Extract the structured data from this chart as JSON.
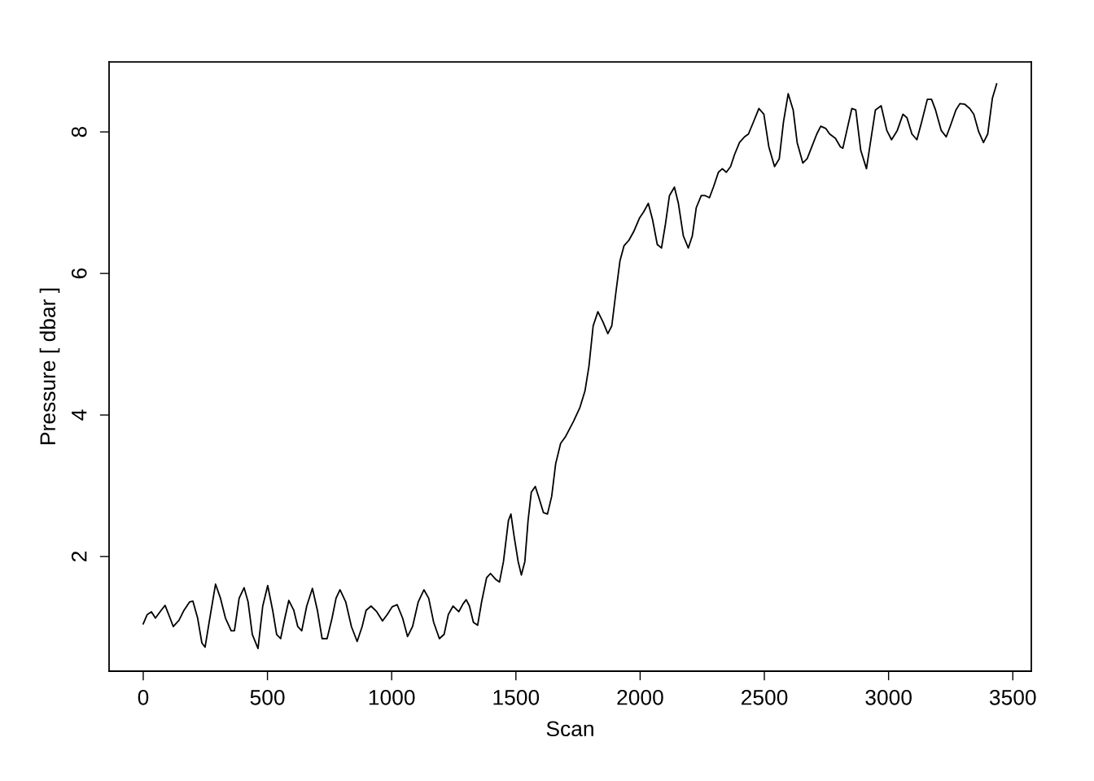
{
  "chart_data": {
    "type": "line",
    "xlabel": "Scan",
    "ylabel": "Pressure [ dbar ]",
    "xlim": [
      -137.5,
      3574.5
    ],
    "ylim": [
      0.38,
      8.99
    ],
    "xticks": [
      0,
      500,
      1000,
      1500,
      2000,
      2500,
      3000,
      3500
    ],
    "yticks": [
      2,
      4,
      6,
      8
    ],
    "grid": false,
    "legend": false,
    "line_style": "solid",
    "marker": "none",
    "series": [
      {
        "color": "#000000",
        "x": [
          0,
          16,
          33,
          49,
          72,
          88,
          108,
          121,
          144,
          164,
          187,
          200,
          219,
          236,
          249,
          268,
          291,
          311,
          331,
          354,
          367,
          386,
          406,
          422,
          439,
          462,
          481,
          501,
          521,
          537,
          553,
          570,
          586,
          606,
          622,
          638,
          658,
          681,
          701,
          720,
          740,
          760,
          776,
          792,
          815,
          838,
          861,
          881,
          897,
          917,
          940,
          963,
          982,
          1002,
          1022,
          1044,
          1064,
          1084,
          1107,
          1130,
          1149,
          1169,
          1192,
          1211,
          1228,
          1247,
          1270,
          1287,
          1300,
          1313,
          1329,
          1346,
          1362,
          1382,
          1398,
          1418,
          1434,
          1450,
          1470,
          1480,
          1493,
          1509,
          1522,
          1536,
          1549,
          1562,
          1578,
          1591,
          1611,
          1627,
          1644,
          1660,
          1680,
          1699,
          1732,
          1758,
          1778,
          1794,
          1811,
          1830,
          1850,
          1870,
          1886,
          1902,
          1919,
          1935,
          1955,
          1974,
          1997,
          2014,
          2033,
          2050,
          2069,
          2086,
          2102,
          2118,
          2138,
          2154,
          2174,
          2194,
          2210,
          2226,
          2246,
          2262,
          2279,
          2295,
          2315,
          2331,
          2347,
          2364,
          2380,
          2400,
          2420,
          2436,
          2456,
          2478,
          2498,
          2518,
          2541,
          2560,
          2577,
          2596,
          2616,
          2632,
          2655,
          2672,
          2691,
          2711,
          2727,
          2747,
          2763,
          2786,
          2806,
          2816,
          2832,
          2852,
          2868,
          2888,
          2911,
          2927,
          2947,
          2970,
          2993,
          3012,
          3035,
          3058,
          3074,
          3094,
          3114,
          3133,
          3156,
          3173,
          3189,
          3212,
          3232,
          3248,
          3271,
          3287,
          3307,
          3327,
          3343,
          3363,
          3382,
          3399,
          3418,
          3435
        ],
        "values": [
          1.05,
          1.18,
          1.22,
          1.13,
          1.24,
          1.31,
          1.13,
          1.01,
          1.1,
          1.24,
          1.36,
          1.37,
          1.13,
          0.78,
          0.72,
          1.13,
          1.61,
          1.41,
          1.13,
          0.95,
          0.95,
          1.41,
          1.56,
          1.36,
          0.9,
          0.7,
          1.3,
          1.59,
          1.24,
          0.9,
          0.84,
          1.13,
          1.38,
          1.24,
          1.01,
          0.95,
          1.3,
          1.55,
          1.24,
          0.84,
          0.84,
          1.13,
          1.41,
          1.53,
          1.36,
          1.01,
          0.8,
          1.01,
          1.24,
          1.3,
          1.22,
          1.09,
          1.18,
          1.29,
          1.32,
          1.13,
          0.87,
          1.01,
          1.36,
          1.53,
          1.41,
          1.07,
          0.84,
          0.9,
          1.18,
          1.3,
          1.22,
          1.33,
          1.39,
          1.3,
          1.07,
          1.03,
          1.36,
          1.7,
          1.76,
          1.68,
          1.64,
          1.93,
          2.51,
          2.6,
          2.28,
          1.93,
          1.74,
          1.93,
          2.51,
          2.91,
          2.99,
          2.85,
          2.62,
          2.6,
          2.85,
          3.31,
          3.6,
          3.69,
          3.91,
          4.11,
          4.34,
          4.69,
          5.26,
          5.46,
          5.32,
          5.15,
          5.26,
          5.72,
          6.18,
          6.39,
          6.47,
          6.59,
          6.78,
          6.87,
          6.99,
          6.76,
          6.41,
          6.36,
          6.7,
          7.1,
          7.22,
          6.99,
          6.53,
          6.36,
          6.53,
          6.93,
          7.1,
          7.1,
          7.07,
          7.22,
          7.43,
          7.48,
          7.43,
          7.51,
          7.68,
          7.85,
          7.93,
          7.97,
          8.14,
          8.33,
          8.25,
          7.79,
          7.51,
          7.62,
          8.14,
          8.54,
          8.31,
          7.85,
          7.56,
          7.62,
          7.79,
          7.97,
          8.08,
          8.05,
          7.97,
          7.91,
          7.79,
          7.77,
          8.02,
          8.33,
          8.31,
          7.74,
          7.48,
          7.85,
          8.31,
          8.37,
          8.02,
          7.89,
          8.02,
          8.25,
          8.2,
          7.97,
          7.89,
          8.14,
          8.46,
          8.46,
          8.31,
          8.02,
          7.93,
          8.08,
          8.31,
          8.4,
          8.39,
          8.33,
          8.25,
          8.0,
          7.85,
          7.97,
          8.48,
          8.68
        ]
      }
    ]
  }
}
